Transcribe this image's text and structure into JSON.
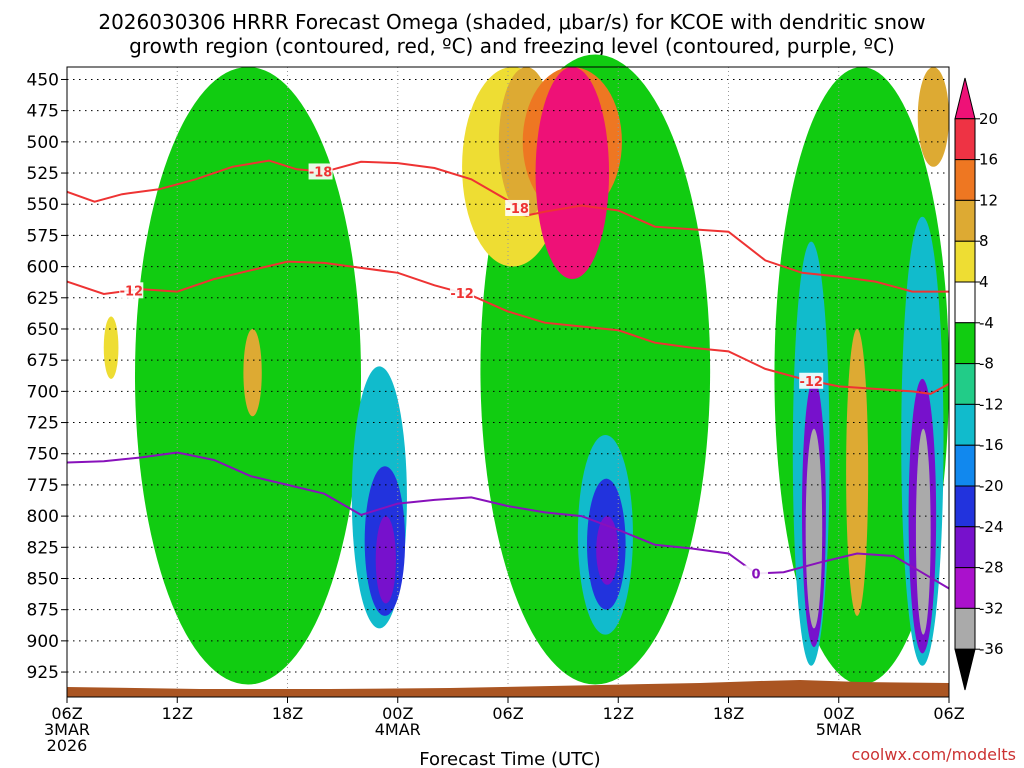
{
  "chart_data": {
    "type": "heatmap",
    "title_line1": "2026030306 HRRR Forecast Omega (shaded, μbar/s) for KCOE with dendritic snow",
    "title_line2": "growth region (contoured, red, ºC) and freezing level (contoured, purple, ºC)",
    "xlabel": "Forecast Time (UTC)",
    "credit": "coolwx.com/modelts",
    "x_ticks": [
      {
        "hour": 0,
        "label": "06Z",
        "sub1": "3MAR",
        "sub2": "2026"
      },
      {
        "hour": 6,
        "label": "12Z",
        "sub1": "",
        "sub2": ""
      },
      {
        "hour": 12,
        "label": "18Z",
        "sub1": "",
        "sub2": ""
      },
      {
        "hour": 18,
        "label": "00Z",
        "sub1": "4MAR",
        "sub2": ""
      },
      {
        "hour": 24,
        "label": "06Z",
        "sub1": "",
        "sub2": ""
      },
      {
        "hour": 30,
        "label": "12Z",
        "sub1": "",
        "sub2": ""
      },
      {
        "hour": 36,
        "label": "18Z",
        "sub1": "",
        "sub2": ""
      },
      {
        "hour": 42,
        "label": "00Z",
        "sub1": "5MAR",
        "sub2": ""
      },
      {
        "hour": 48,
        "label": "06Z",
        "sub1": "",
        "sub2": ""
      }
    ],
    "y_ticks": [
      450,
      475,
      500,
      525,
      550,
      575,
      600,
      625,
      650,
      675,
      700,
      725,
      750,
      775,
      800,
      825,
      850,
      875,
      900,
      925
    ],
    "xlim": [
      0,
      48
    ],
    "ylim": [
      440,
      945
    ],
    "colorbar": {
      "levels": [
        20,
        16,
        12,
        8,
        4,
        -4,
        -8,
        -12,
        -16,
        -20,
        -24,
        -28,
        -32,
        -36
      ],
      "colors": [
        "#ee1177",
        "#ee3344",
        "#ee7722",
        "#ddaa33",
        "#eedd33",
        "#ffffff",
        "#11cc11",
        "#22cc88",
        "#11bbcc",
        "#1188ee",
        "#2233dd",
        "#7711cc",
        "#aa11cc",
        "#aaaaaa",
        "#000000"
      ]
    },
    "omega_cells": [
      {
        "t": [
          3.7,
          16
        ],
        "p": [
          440,
          935
        ],
        "v": -6
      },
      {
        "t": [
          15.5,
          18.5
        ],
        "p": [
          680,
          890
        ],
        "v": -14
      },
      {
        "t": [
          16.2,
          18.4
        ],
        "p": [
          760,
          880
        ],
        "v": -22
      },
      {
        "t": [
          16.8,
          17.9
        ],
        "p": [
          800,
          870
        ],
        "v": -28
      },
      {
        "t": [
          22.5,
          35
        ],
        "p": [
          430,
          935
        ],
        "v": -7
      },
      {
        "t": [
          27.8,
          30.8
        ],
        "p": [
          735,
          895
        ],
        "v": -14
      },
      {
        "t": [
          28.3,
          30.4
        ],
        "p": [
          770,
          875
        ],
        "v": -22
      },
      {
        "t": [
          28.8,
          30.0
        ],
        "p": [
          800,
          855
        ],
        "v": -28
      },
      {
        "t": [
          38.5,
          48
        ],
        "p": [
          440,
          935
        ],
        "v": -6
      },
      {
        "t": [
          39.5,
          41.5
        ],
        "p": [
          580,
          920
        ],
        "v": -16
      },
      {
        "t": [
          40.0,
          41.3
        ],
        "p": [
          690,
          905
        ],
        "v": -28
      },
      {
        "t": [
          40.2,
          41.1
        ],
        "p": [
          730,
          890
        ],
        "v": -36
      },
      {
        "t": [
          45.4,
          47.7
        ],
        "p": [
          560,
          920
        ],
        "v": -16
      },
      {
        "t": [
          45.8,
          47.3
        ],
        "p": [
          690,
          910
        ],
        "v": -28
      },
      {
        "t": [
          46.2,
          47.0
        ],
        "p": [
          730,
          895
        ],
        "v": -36
      },
      {
        "t": [
          21.5,
          27
        ],
        "p": [
          440,
          600
        ],
        "v": 6
      },
      {
        "t": [
          23.5,
          26.5
        ],
        "p": [
          440,
          560
        ],
        "v": 10
      },
      {
        "t": [
          24.8,
          30.2
        ],
        "p": [
          440,
          560
        ],
        "v": 14
      },
      {
        "t": [
          25.5,
          29.5
        ],
        "p": [
          440,
          610
        ],
        "v": 22
      },
      {
        "t": [
          42.4,
          43.6
        ],
        "p": [
          650,
          880
        ],
        "v": 8
      },
      {
        "t": [
          46.3,
          48
        ],
        "p": [
          440,
          520
        ],
        "v": 10
      },
      {
        "t": [
          9.6,
          10.6
        ],
        "p": [
          650,
          720
        ],
        "v": 10
      },
      {
        "t": [
          2.0,
          2.8
        ],
        "p": [
          640,
          690
        ],
        "v": 6
      }
    ],
    "series": [
      {
        "name": "-18",
        "color": "#ee3333",
        "label_at": [
          13.8,
          24.5
        ],
        "points": [
          [
            0,
            540
          ],
          [
            1.5,
            548
          ],
          [
            3,
            542
          ],
          [
            5,
            538
          ],
          [
            7,
            530
          ],
          [
            9,
            520
          ],
          [
            11,
            515
          ],
          [
            12.5,
            522
          ],
          [
            14,
            524
          ],
          [
            16,
            516
          ],
          [
            18,
            517
          ],
          [
            20,
            521
          ],
          [
            22,
            530
          ],
          [
            24,
            547
          ],
          [
            25,
            559
          ],
          [
            26,
            556
          ],
          [
            28,
            551
          ],
          [
            30,
            555
          ],
          [
            32,
            568
          ],
          [
            34,
            570
          ],
          [
            36,
            572
          ],
          [
            38,
            595
          ],
          [
            40,
            605
          ],
          [
            42,
            608
          ],
          [
            44,
            612
          ],
          [
            46,
            620
          ],
          [
            48,
            620
          ]
        ]
      },
      {
        "name": "-12",
        "color": "#ee3333",
        "label_at": [
          3.5,
          21.5,
          40.5
        ],
        "points": [
          [
            0,
            612
          ],
          [
            2,
            622
          ],
          [
            4,
            618
          ],
          [
            6,
            620
          ],
          [
            8,
            610
          ],
          [
            10,
            603
          ],
          [
            12,
            596
          ],
          [
            14,
            597
          ],
          [
            16,
            601
          ],
          [
            18,
            605
          ],
          [
            20,
            615
          ],
          [
            22,
            623
          ],
          [
            24,
            636
          ],
          [
            26,
            645
          ],
          [
            28,
            648
          ],
          [
            30,
            651
          ],
          [
            32,
            661
          ],
          [
            34,
            665
          ],
          [
            36,
            668
          ],
          [
            38,
            682
          ],
          [
            40,
            690
          ],
          [
            42,
            696
          ],
          [
            44,
            698
          ],
          [
            46,
            700
          ],
          [
            47,
            702
          ],
          [
            48,
            694
          ]
        ]
      },
      {
        "name": "0",
        "color": "#8811bb",
        "label_at": [
          37.5
        ],
        "points": [
          [
            0,
            757
          ],
          [
            2,
            756
          ],
          [
            4,
            753
          ],
          [
            6,
            749
          ],
          [
            8,
            755
          ],
          [
            10,
            768
          ],
          [
            12,
            775
          ],
          [
            14,
            782
          ],
          [
            16,
            799
          ],
          [
            18,
            790
          ],
          [
            20,
            787
          ],
          [
            22,
            785
          ],
          [
            24,
            792
          ],
          [
            26,
            797
          ],
          [
            28,
            800
          ],
          [
            30,
            811
          ],
          [
            32,
            823
          ],
          [
            34,
            826
          ],
          [
            36,
            830
          ],
          [
            37.5,
            846
          ],
          [
            39,
            845
          ],
          [
            41,
            837
          ],
          [
            43,
            830
          ],
          [
            45,
            832
          ],
          [
            46.5,
            845
          ],
          [
            48,
            858
          ]
        ]
      }
    ]
  }
}
